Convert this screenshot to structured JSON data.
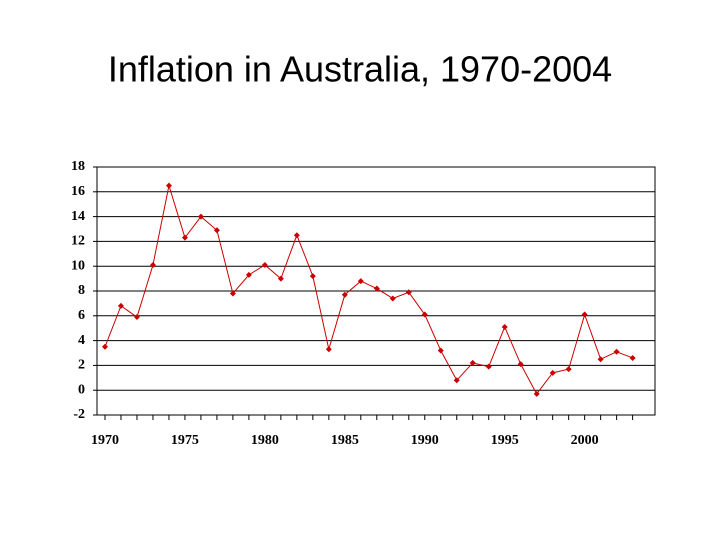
{
  "chart_data": {
    "type": "line",
    "title": "Inflation in Australia, 1970-2004",
    "x": [
      1970,
      1971,
      1972,
      1973,
      1974,
      1975,
      1976,
      1977,
      1978,
      1979,
      1980,
      1981,
      1982,
      1983,
      1984,
      1985,
      1986,
      1987,
      1988,
      1989,
      1990,
      1991,
      1992,
      1993,
      1994,
      1995,
      1996,
      1997,
      1998,
      1999,
      2000,
      2001,
      2002,
      2003
    ],
    "series": [
      {
        "name": "Inflation",
        "color": "#cc0000",
        "values": [
          3.5,
          6.8,
          5.9,
          10.1,
          16.5,
          12.3,
          14.0,
          12.9,
          7.8,
          9.3,
          10.1,
          9.0,
          12.5,
          9.2,
          3.3,
          7.7,
          8.8,
          8.2,
          7.4,
          7.9,
          6.1,
          3.2,
          0.8,
          2.2,
          1.9,
          5.1,
          2.1,
          -0.3,
          1.4,
          1.7,
          6.1,
          2.5,
          3.1,
          2.6
        ]
      }
    ],
    "xlim": [
      1969.5,
      2004.4
    ],
    "xticks": [
      1970,
      1975,
      1980,
      1985,
      1990,
      1995,
      2000
    ],
    "ylim": [
      -2,
      18
    ],
    "yticks": [
      -2,
      0,
      2,
      4,
      6,
      8,
      10,
      12,
      14,
      16,
      18
    ],
    "grid": true
  }
}
